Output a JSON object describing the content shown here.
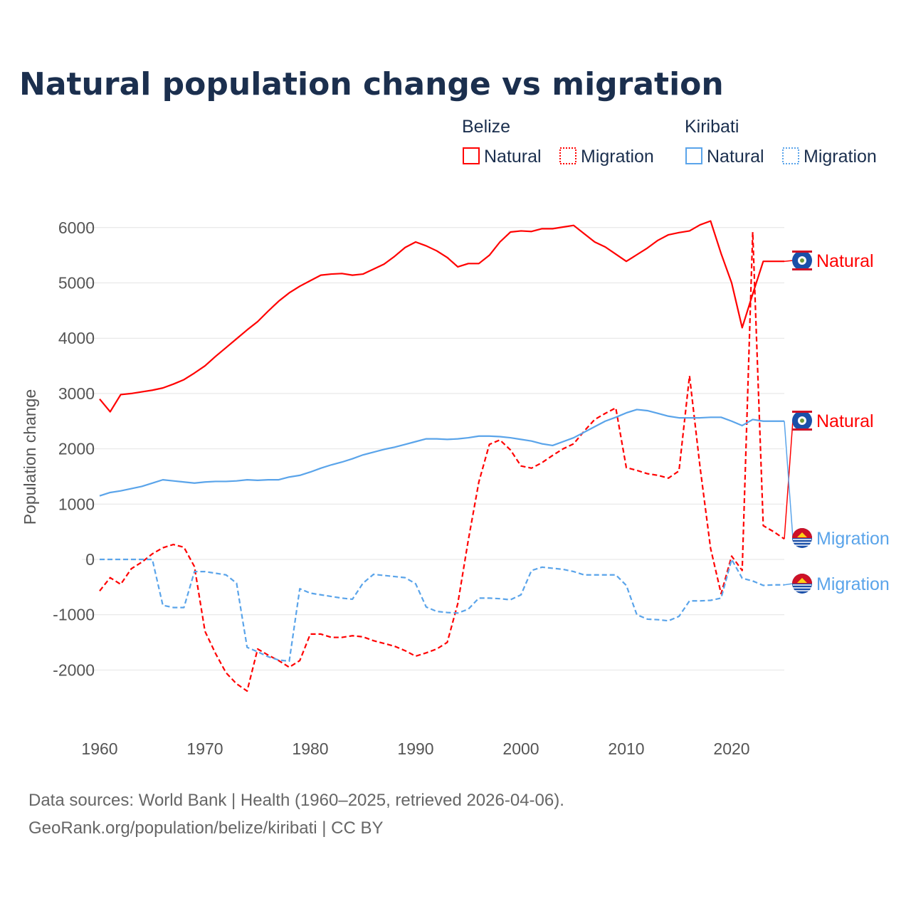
{
  "chart_data": {
    "type": "line",
    "title": "Natural population change vs migration",
    "xlabel": "",
    "ylabel": "Population change",
    "xlim": [
      1960,
      2025
    ],
    "ylim": [
      -2600,
      6200
    ],
    "yticks": [
      -2000,
      -1000,
      0,
      1000,
      2000,
      3000,
      4000,
      5000,
      6000
    ],
    "xticks": [
      1960,
      1970,
      1980,
      1990,
      2000,
      2010,
      2020
    ],
    "grid": true,
    "legend": {
      "placement": "top-right",
      "groups": [
        {
          "name": "Belize",
          "entries": [
            "Natural",
            "Migration"
          ]
        },
        {
          "name": "Kiribati",
          "entries": [
            "Natural",
            "Migration"
          ]
        }
      ]
    },
    "x_start": 1960,
    "series": [
      {
        "name": "Belize Natural",
        "country": "Belize",
        "kind": "Natural",
        "color": "#ff0000",
        "dashed": false,
        "values": [
          2900,
          2670,
          2980,
          3000,
          3030,
          3060,
          3100,
          3170,
          3250,
          3370,
          3500,
          3670,
          3830,
          3990,
          4150,
          4300,
          4490,
          4670,
          4820,
          4940,
          5040,
          5140,
          5160,
          5170,
          5140,
          5160,
          5250,
          5340,
          5480,
          5640,
          5740,
          5670,
          5580,
          5460,
          5290,
          5350,
          5350,
          5500,
          5740,
          5920,
          5940,
          5930,
          5980,
          5980,
          6010,
          6040,
          5890,
          5740,
          5650,
          5520,
          5390,
          5510,
          5630,
          5770,
          5870,
          5910,
          5940,
          6050,
          6120,
          5530,
          5000,
          4190,
          4800,
          5390,
          5390,
          5390
        ]
      },
      {
        "name": "Belize Migration",
        "country": "Belize",
        "kind": "Migration",
        "color": "#ff0000",
        "dashed": true,
        "values": [
          -570,
          -330,
          -450,
          -170,
          -50,
          100,
          210,
          270,
          220,
          -130,
          -1300,
          -1700,
          -2050,
          -2250,
          -2380,
          -1620,
          -1730,
          -1830,
          -1950,
          -1830,
          -1350,
          -1350,
          -1410,
          -1410,
          -1380,
          -1400,
          -1470,
          -1520,
          -1570,
          -1650,
          -1750,
          -1690,
          -1620,
          -1500,
          -800,
          350,
          1400,
          2080,
          2160,
          1980,
          1690,
          1650,
          1750,
          1880,
          2000,
          2090,
          2320,
          2530,
          2640,
          2740,
          1660,
          1610,
          1550,
          1520,
          1470,
          1600,
          3320,
          1670,
          200,
          -620,
          60,
          -200,
          5920,
          610,
          500,
          370
        ]
      },
      {
        "name": "Kiribati Natural",
        "country": "Kiribati",
        "kind": "Natural",
        "color": "#5aa4ea",
        "dashed": false,
        "values": [
          1150,
          1210,
          1240,
          1280,
          1320,
          1380,
          1440,
          1420,
          1400,
          1380,
          1400,
          1410,
          1410,
          1420,
          1440,
          1430,
          1440,
          1440,
          1490,
          1520,
          1580,
          1650,
          1710,
          1760,
          1820,
          1890,
          1940,
          1990,
          2030,
          2080,
          2130,
          2180,
          2180,
          2170,
          2180,
          2200,
          2230,
          2230,
          2220,
          2200,
          2170,
          2140,
          2090,
          2060,
          2130,
          2200,
          2300,
          2400,
          2500,
          2570,
          2650,
          2710,
          2690,
          2640,
          2590,
          2560,
          2560,
          2560,
          2570,
          2570,
          2500,
          2420,
          2530,
          2500,
          2500,
          2500
        ]
      },
      {
        "name": "Kiribati Migration",
        "country": "Kiribati",
        "kind": "Migration",
        "color": "#5aa4ea",
        "dashed": true,
        "values": [
          0,
          0,
          0,
          0,
          0,
          0,
          -830,
          -870,
          -870,
          -220,
          -220,
          -250,
          -280,
          -430,
          -1590,
          -1670,
          -1760,
          -1820,
          -1840,
          -530,
          -610,
          -640,
          -670,
          -700,
          -720,
          -430,
          -270,
          -290,
          -310,
          -330,
          -440,
          -860,
          -940,
          -960,
          -970,
          -900,
          -700,
          -700,
          -710,
          -730,
          -640,
          -200,
          -140,
          -160,
          -180,
          -220,
          -280,
          -280,
          -280,
          -280,
          -470,
          -1000,
          -1080,
          -1090,
          -1110,
          -1030,
          -750,
          -750,
          -740,
          -700,
          0,
          -340,
          -390,
          -470,
          -460,
          -460
        ]
      }
    ],
    "end_labels": [
      "Natural",
      "Natural",
      "Migration",
      "Migration"
    ],
    "footer": [
      "Data sources: World Bank | Health (1960–2025, retrieved 2026-04-06).",
      "GeoRank.org/population/belize/kiribati | CC BY"
    ]
  }
}
